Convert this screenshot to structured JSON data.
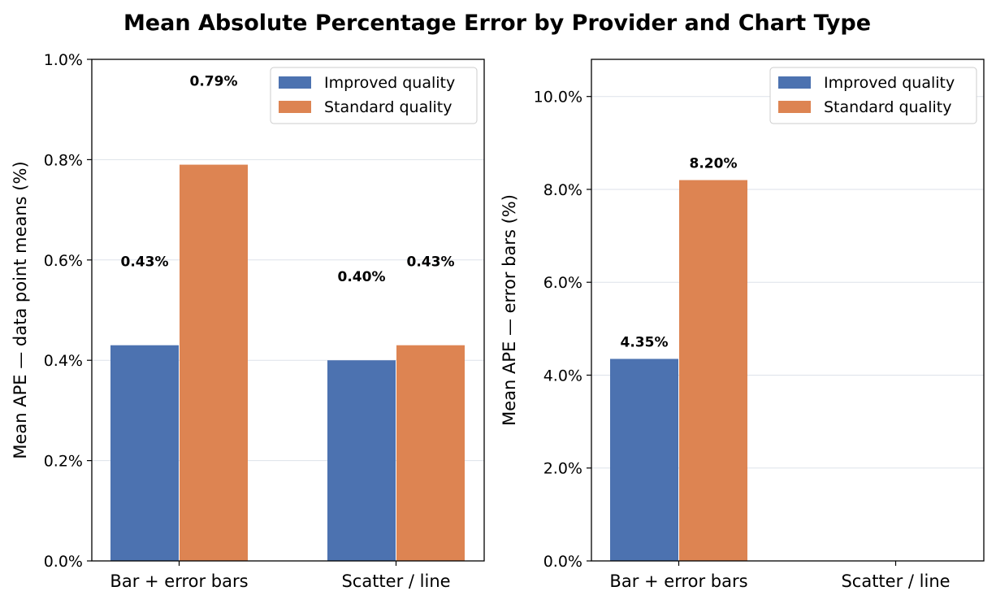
{
  "title": "Mean Absolute Percentage Error by Provider and Chart Type",
  "colors": {
    "improved": "#4c72b0",
    "standard": "#dd8452",
    "grid": "#dde2ea"
  },
  "chart_data": [
    {
      "type": "bar",
      "ylabel": "Mean APE — data point means (%)",
      "categories": [
        "Bar + error bars",
        "Scatter / line"
      ],
      "series": [
        {
          "name": "Improved quality",
          "values": [
            0.43,
            0.4
          ],
          "labels": [
            "0.43%",
            "0.40%"
          ]
        },
        {
          "name": "Standard quality",
          "values": [
            0.79,
            0.43
          ],
          "labels": [
            "0.79%",
            "0.43%"
          ]
        }
      ],
      "ylim": [
        0,
        1.0
      ],
      "yticks": [
        0.0,
        0.2,
        0.4,
        0.6,
        0.8,
        1.0
      ],
      "ytick_labels": [
        "0.0%",
        "0.2%",
        "0.4%",
        "0.6%",
        "0.8%",
        "1.0%"
      ],
      "grid": true,
      "legend": "top-right"
    },
    {
      "type": "bar",
      "ylabel": "Mean APE — error bars (%)",
      "categories": [
        "Bar + error bars",
        "Scatter / line"
      ],
      "series": [
        {
          "name": "Improved quality",
          "values": [
            4.35,
            null
          ],
          "labels": [
            "4.35%",
            ""
          ]
        },
        {
          "name": "Standard quality",
          "values": [
            8.2,
            null
          ],
          "labels": [
            "8.20%",
            ""
          ]
        }
      ],
      "ylim": [
        0,
        10.8
      ],
      "yticks": [
        0,
        2,
        4,
        6,
        8,
        10
      ],
      "ytick_labels": [
        "0.0%",
        "2.0%",
        "4.0%",
        "6.0%",
        "8.0%",
        "10.0%"
      ],
      "grid": true,
      "legend": "top-right"
    }
  ]
}
